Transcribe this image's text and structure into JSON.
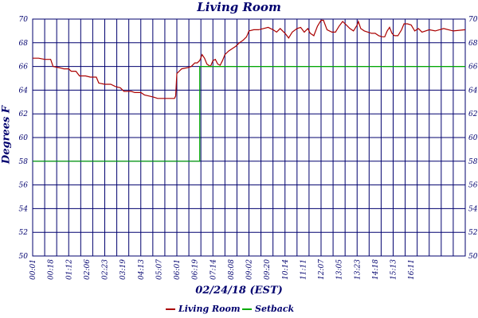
{
  "chart_data": {
    "type": "line",
    "title": "Living Room",
    "xlabel": "02/24/18 (EST)",
    "ylabel": "Degrees F",
    "ylim": [
      50,
      70
    ],
    "yticks": [
      50,
      52,
      54,
      56,
      58,
      60,
      62,
      64,
      66,
      68,
      70
    ],
    "xlim": [
      0,
      36
    ],
    "x_tick_labels": [
      "00:01",
      "00:18",
      "01:12",
      "02:06",
      "02:23",
      "03:19",
      "04:13",
      "05:07",
      "06:01",
      "06:19",
      "07:14",
      "08:08",
      "09:02",
      "09:20",
      "10:14",
      "11:11",
      "12:07",
      "13:05",
      "13:23",
      "14:18",
      "15:13",
      "16:11"
    ],
    "x_tick_positions": [
      0,
      1.5,
      3,
      4.5,
      6,
      7.5,
      9,
      10.5,
      12,
      13.5,
      15,
      16.5,
      18,
      19.5,
      21,
      22.5,
      24,
      25.5,
      27,
      28.5,
      30,
      31.5
    ],
    "vertical_grid_count": 36,
    "grid": true,
    "legend_position": "bottom",
    "series": [
      {
        "name": "Living Room",
        "color": "#aa0000",
        "points": [
          [
            0,
            66.7
          ],
          [
            0.5,
            66.7
          ],
          [
            1,
            66.6
          ],
          [
            1.5,
            66.6
          ],
          [
            1.7,
            66.0
          ],
          [
            2.2,
            65.9
          ],
          [
            2.6,
            65.8
          ],
          [
            3,
            65.8
          ],
          [
            3.2,
            65.6
          ],
          [
            3.6,
            65.6
          ],
          [
            3.9,
            65.2
          ],
          [
            4.4,
            65.2
          ],
          [
            4.8,
            65.1
          ],
          [
            5.3,
            65.1
          ],
          [
            5.5,
            64.6
          ],
          [
            6,
            64.5
          ],
          [
            6.5,
            64.5
          ],
          [
            6.9,
            64.3
          ],
          [
            7.3,
            64.2
          ],
          [
            7.6,
            63.9
          ],
          [
            8.2,
            63.9
          ],
          [
            8.5,
            63.8
          ],
          [
            9,
            63.8
          ],
          [
            9.3,
            63.6
          ],
          [
            9.7,
            63.5
          ],
          [
            10.1,
            63.4
          ],
          [
            10.4,
            63.3
          ],
          [
            11,
            63.3
          ],
          [
            11.8,
            63.3
          ],
          [
            11.9,
            63.5
          ],
          [
            12,
            65.4
          ],
          [
            12.4,
            65.8
          ],
          [
            12.9,
            65.9
          ],
          [
            13.2,
            66.0
          ],
          [
            13.5,
            66.3
          ],
          [
            13.7,
            66.3
          ],
          [
            13.9,
            66.5
          ],
          [
            14.1,
            67.0
          ],
          [
            14.3,
            66.7
          ],
          [
            14.5,
            66.2
          ],
          [
            14.8,
            66.0
          ],
          [
            15,
            66.5
          ],
          [
            15.2,
            66.6
          ],
          [
            15.4,
            66.2
          ],
          [
            15.6,
            66.1
          ],
          [
            15.8,
            66.5
          ],
          [
            16,
            67.0
          ],
          [
            16.3,
            67.3
          ],
          [
            16.6,
            67.5
          ],
          [
            16.9,
            67.7
          ],
          [
            17.2,
            68.0
          ],
          [
            17.5,
            68.2
          ],
          [
            17.8,
            68.5
          ],
          [
            18,
            69.0
          ],
          [
            18.4,
            69.1
          ],
          [
            18.8,
            69.1
          ],
          [
            19.2,
            69.2
          ],
          [
            19.6,
            69.3
          ],
          [
            20,
            69.1
          ],
          [
            20.3,
            68.9
          ],
          [
            20.6,
            69.2
          ],
          [
            21,
            68.8
          ],
          [
            21.3,
            68.4
          ],
          [
            21.6,
            68.9
          ],
          [
            22,
            69.2
          ],
          [
            22.3,
            69.3
          ],
          [
            22.6,
            68.9
          ],
          [
            22.9,
            69.2
          ],
          [
            23.1,
            68.8
          ],
          [
            23.4,
            68.6
          ],
          [
            23.7,
            69.4
          ],
          [
            24,
            69.9
          ],
          [
            24.2,
            69.9
          ],
          [
            24.5,
            69.1
          ],
          [
            24.9,
            68.9
          ],
          [
            25.2,
            68.9
          ],
          [
            25.5,
            69.4
          ],
          [
            25.8,
            69.8
          ],
          [
            26.1,
            69.5
          ],
          [
            26.4,
            69.2
          ],
          [
            26.7,
            69.0
          ],
          [
            27,
            69.5
          ],
          [
            27.1,
            69.8
          ],
          [
            27.3,
            69.2
          ],
          [
            27.6,
            69.0
          ],
          [
            27.9,
            68.9
          ],
          [
            28.2,
            68.8
          ],
          [
            28.5,
            68.8
          ],
          [
            28.8,
            68.6
          ],
          [
            29.1,
            68.5
          ],
          [
            29.3,
            68.5
          ],
          [
            29.5,
            69.0
          ],
          [
            29.7,
            69.3
          ],
          [
            29.9,
            68.8
          ],
          [
            30.1,
            68.6
          ],
          [
            30.4,
            68.6
          ],
          [
            30.7,
            69.1
          ],
          [
            30.9,
            69.6
          ],
          [
            31.2,
            69.6
          ],
          [
            31.5,
            69.5
          ],
          [
            31.8,
            69.0
          ],
          [
            32.1,
            69.2
          ],
          [
            32.4,
            68.9
          ],
          [
            33,
            69.1
          ],
          [
            33.5,
            69.0
          ],
          [
            34.2,
            69.2
          ],
          [
            35,
            69.0
          ],
          [
            36,
            69.1
          ]
        ]
      },
      {
        "name": "Setback",
        "color": "#00aa00",
        "points": [
          [
            0,
            58
          ],
          [
            13.9,
            58
          ],
          [
            13.9,
            66
          ],
          [
            36,
            66
          ]
        ]
      }
    ]
  }
}
